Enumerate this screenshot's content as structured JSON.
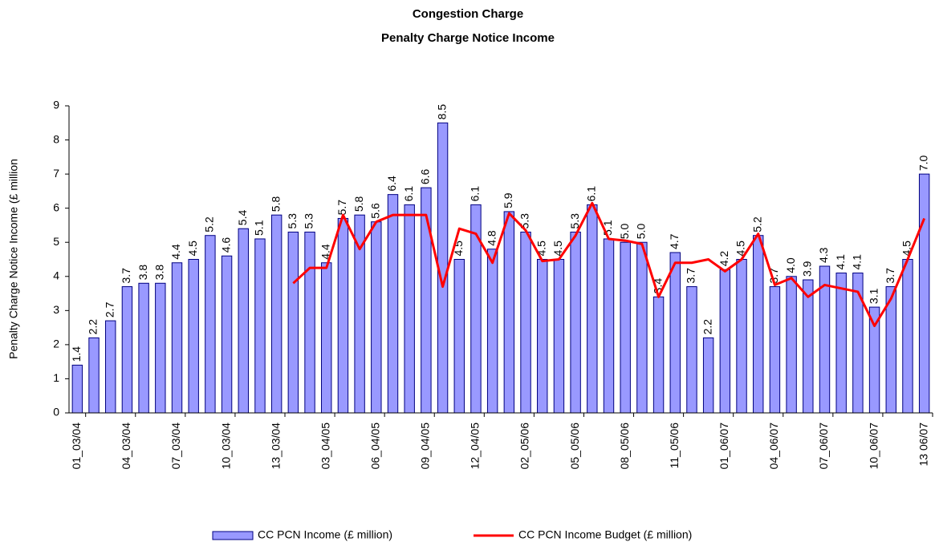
{
  "chart_data": {
    "type": "bar",
    "title": "Congestion Charge",
    "subtitle": "Penalty Charge Notice Income",
    "y_label": "Penalty Charge Notice Income (£ million",
    "categories": [
      "01_03/04",
      null,
      null,
      "04_03/04",
      null,
      null,
      "07_03/04",
      null,
      null,
      "10_03/04",
      null,
      null,
      "13_03/04",
      null,
      null,
      "03_04/05",
      null,
      null,
      "06_04/05",
      null,
      null,
      "09_04/05",
      null,
      null,
      "12_04/05",
      null,
      null,
      "02_05/06",
      null,
      null,
      "05_05/06",
      null,
      null,
      "08_05/06",
      null,
      null,
      "11_05/06",
      null,
      null,
      "01_06/07",
      null,
      null,
      "04_06/07",
      null,
      null,
      "07_06/07",
      null,
      null,
      "10_06/07",
      null,
      null,
      "13 06/07"
    ],
    "ylim": [
      0,
      9
    ],
    "yticks": [
      0,
      1,
      2,
      3,
      4,
      5,
      6,
      7,
      8,
      9
    ],
    "grid": false,
    "series": [
      {
        "name": "CC PCN Income (£ million)",
        "type": "bar",
        "color": "#9999ff",
        "edge": "#000080",
        "values": [
          1.4,
          2.2,
          2.7,
          3.7,
          3.8,
          3.8,
          4.4,
          4.5,
          5.2,
          4.6,
          5.4,
          5.1,
          5.8,
          5.3,
          5.3,
          4.4,
          5.7,
          5.8,
          5.6,
          6.4,
          6.1,
          6.6,
          8.5,
          4.5,
          6.1,
          4.8,
          5.9,
          5.3,
          4.5,
          4.5,
          5.3,
          6.1,
          5.1,
          5.0,
          5.0,
          3.4,
          4.7,
          3.7,
          2.2,
          4.2,
          4.5,
          5.2,
          3.7,
          4.0,
          3.9,
          4.3,
          4.1,
          4.1,
          3.1,
          3.7,
          4.5,
          7.0
        ],
        "value_labels": [
          "1.4",
          "2.2",
          "2.7",
          "3.7",
          "3.8",
          "3.8",
          "4.4",
          "4.5",
          "5.2",
          "4.6",
          "5.4",
          "5.1",
          "5.8",
          "5.3",
          "5.3",
          "4.4",
          "5.7",
          "5.8",
          "5.6",
          "6.4",
          "6.1",
          "6.6",
          "8.5",
          "4.5",
          "6.1",
          "4.8",
          "5.9",
          "5.3",
          "4.5",
          "4.5",
          "5.3",
          "6.1",
          "5.1",
          "5.0",
          "5.0",
          "3.4",
          "4.7",
          "3.7",
          "2.2",
          "4.2",
          "4.5",
          "5.2",
          "3.7",
          "4.0",
          "3.9",
          "4.3",
          "4.1",
          "4.1",
          "3.1",
          "3.7",
          "4.5",
          "7.0"
        ]
      },
      {
        "name": "CC PCN Income Budget  (£ million)",
        "type": "line",
        "color": "#ff0000",
        "values": [
          null,
          null,
          null,
          null,
          null,
          null,
          null,
          null,
          null,
          null,
          null,
          null,
          null,
          3.8,
          4.25,
          4.25,
          5.8,
          4.8,
          5.6,
          5.8,
          5.8,
          5.8,
          3.7,
          5.4,
          5.25,
          4.4,
          5.85,
          5.35,
          4.45,
          4.5,
          5.2,
          6.15,
          5.1,
          5.05,
          4.95,
          3.4,
          4.4,
          4.4,
          4.5,
          4.15,
          4.5,
          5.25,
          3.75,
          3.95,
          3.4,
          3.75,
          3.65,
          3.55,
          2.55,
          3.35,
          4.5,
          5.7
        ]
      }
    ]
  }
}
